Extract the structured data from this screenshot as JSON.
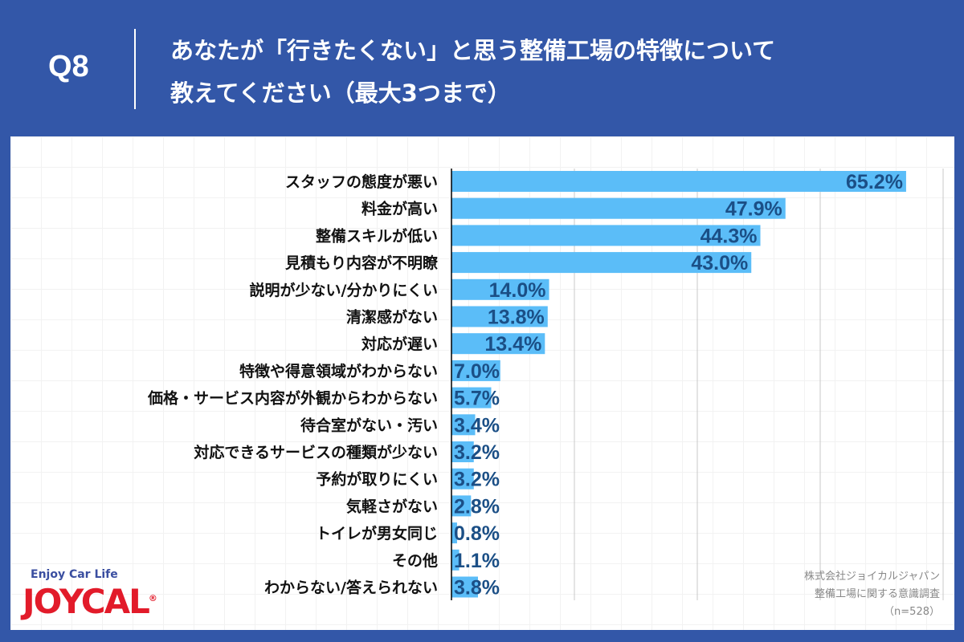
{
  "header": {
    "q": "Q8",
    "title_lines": [
      "あなたが「行きたくない」と思う整備工場の特徴について",
      "教えてください（最大3つまで）"
    ]
  },
  "chart_data": {
    "type": "bar",
    "orientation": "horizontal",
    "unit": "%",
    "grid": true,
    "categories": [
      "スタッフの態度が悪い",
      "料金が高い",
      "整備スキルが低い",
      "見積もり内容が不明瞭",
      "説明が少ない/分かりにくい",
      "清潔感がない",
      "対応が遅い",
      "特徴や得意領域がわからない",
      "価格・サービス内容が外観からわからない",
      "待合室がない・汚い",
      "対応できるサービスの種類が少ない",
      "予約が取りにくい",
      "気軽さがない",
      "トイレが男女同じ",
      "その他",
      "わからない/答えられない"
    ],
    "values": [
      65.2,
      47.9,
      44.3,
      43.0,
      14.0,
      13.8,
      13.4,
      7.0,
      5.7,
      3.4,
      3.2,
      3.2,
      2.8,
      0.8,
      1.1,
      3.8
    ],
    "labels": [
      "65.2%",
      "47.9%",
      "44.3%",
      "43.0%",
      "14.0%",
      "13.8%",
      "13.4%",
      "7.0%",
      "5.7%",
      "3.4%",
      "3.2%",
      "3.2%",
      "2.8%",
      "0.8%",
      "1.1%",
      "3.8%"
    ],
    "colors": {
      "bar": "#5bbdf8",
      "value_text": "#1b4f86"
    }
  },
  "credit": {
    "lines": [
      "株式会社ジョイカルジャパン",
      "整備工場に関する意識調査",
      "（n=528）"
    ]
  },
  "logo": {
    "tagline": "Enjoy Car Life",
    "name": "JOYCAL",
    "mark": "®"
  }
}
